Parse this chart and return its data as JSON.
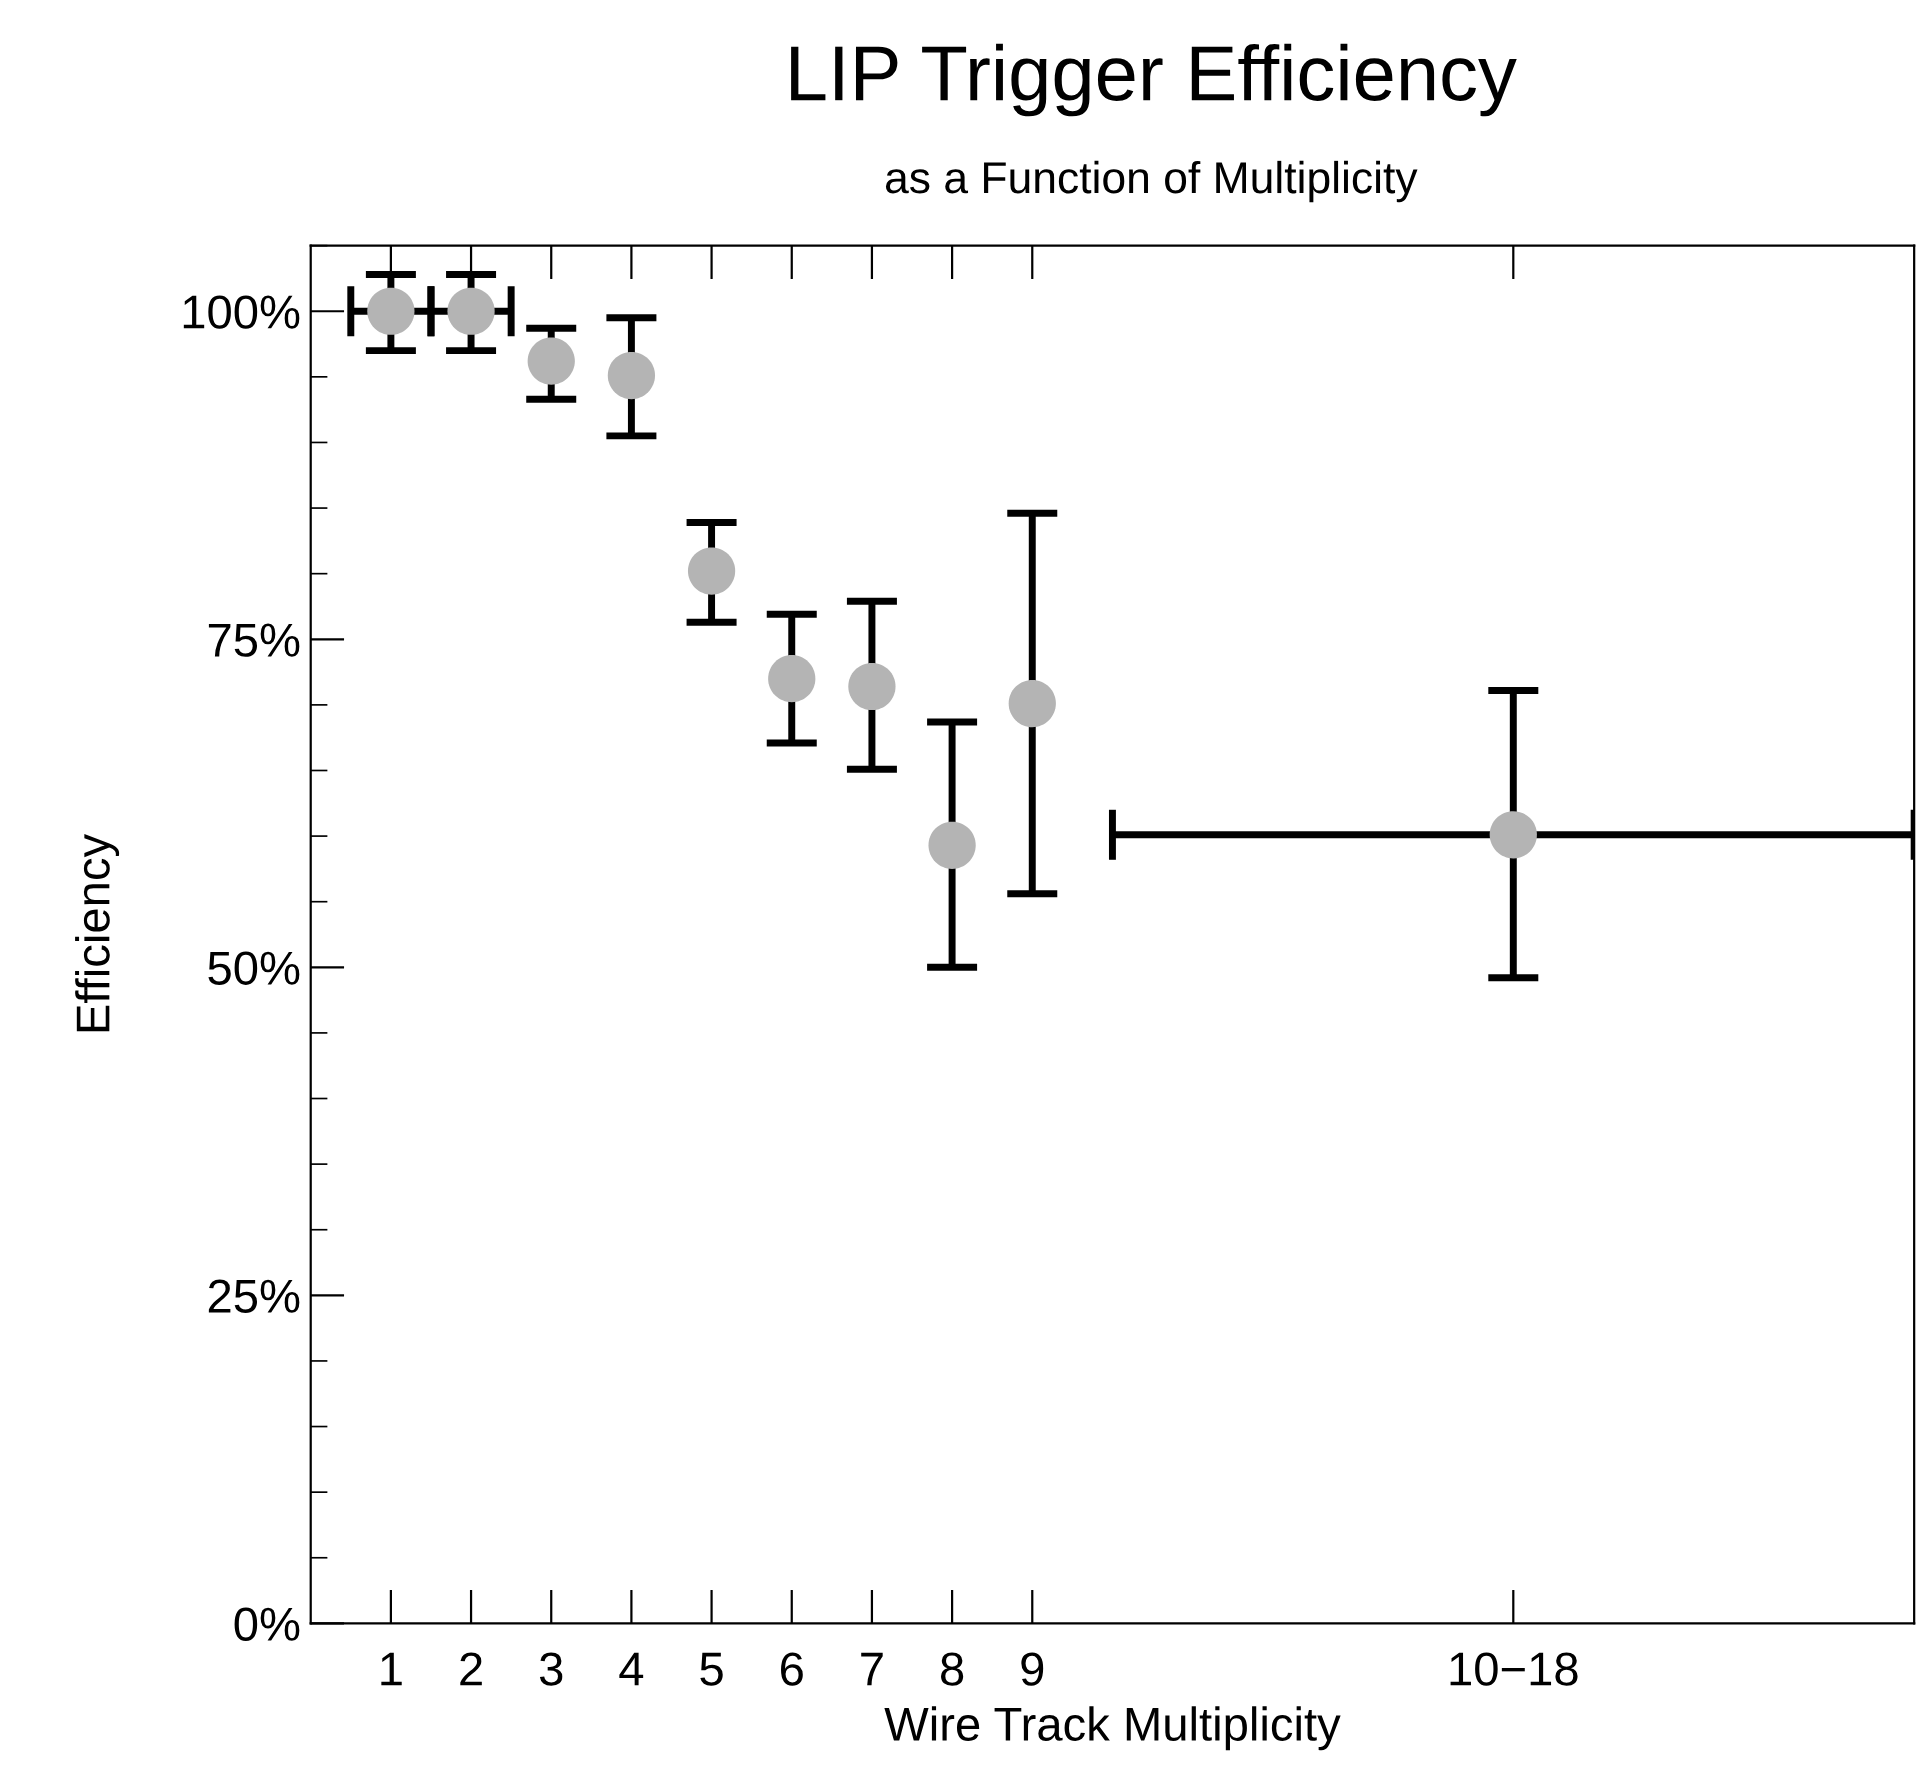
{
  "chart_data": {
    "type": "scatter",
    "title": "LIP Trigger Efficiency",
    "subtitle": "as a Function of Multiplicity",
    "xlabel": "Wire Track Multiplicity",
    "ylabel": "Efficiency",
    "x": [
      1,
      2,
      3,
      4,
      5,
      6,
      7,
      8,
      9,
      15
    ],
    "values": [
      100,
      100,
      96.2,
      95.1,
      80.2,
      72.0,
      71.4,
      59.3,
      70.1,
      60.1
    ],
    "errors": [
      [
        97.0,
        102.8
      ],
      [
        97.0,
        102.8
      ],
      [
        93.3,
        98.7
      ],
      [
        90.5,
        99.5
      ],
      [
        76.3,
        83.9
      ],
      [
        67.1,
        76.9
      ],
      [
        65.1,
        77.9
      ],
      [
        50.0,
        68.7
      ],
      [
        55.6,
        84.6
      ],
      [
        49.2,
        71.1
      ]
    ],
    "xerrors": [
      [
        0.5,
        1.5
      ],
      [
        1.5,
        2.5
      ],
      null,
      null,
      null,
      null,
      null,
      null,
      null,
      [
        10,
        20
      ]
    ],
    "color": "#b4b4b4",
    "marker": "circle",
    "xlim": [
      0,
      20
    ],
    "ylim": [
      0,
      105
    ],
    "xticks": [
      1,
      2,
      3,
      4,
      5,
      6,
      7,
      8,
      9,
      {
        "value": 15,
        "label": "10−18"
      }
    ],
    "yticks": [
      {
        "value": 0,
        "label": "0%"
      },
      {
        "value": 25,
        "label": "25%"
      },
      {
        "value": 50,
        "label": "50%"
      },
      {
        "value": 75,
        "label": "75%"
      },
      {
        "value": 100,
        "label": "100%"
      }
    ],
    "grid": false,
    "legend": false
  }
}
